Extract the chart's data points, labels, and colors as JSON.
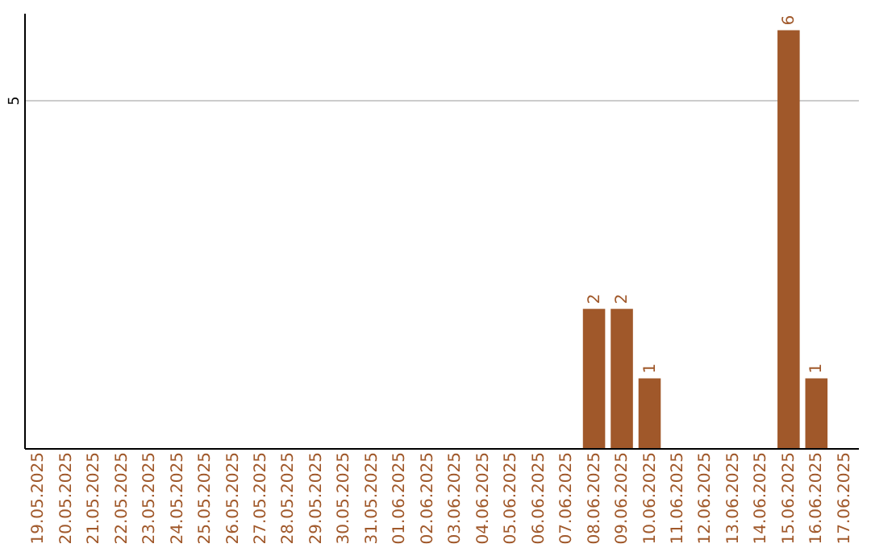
{
  "chart_data": {
    "type": "bar",
    "categories": [
      "19.05.2025",
      "20.05.2025",
      "21.05.2025",
      "22.05.2025",
      "23.05.2025",
      "24.05.2025",
      "25.05.2025",
      "26.05.2025",
      "27.05.2025",
      "28.05.2025",
      "29.05.2025",
      "30.05.2025",
      "31.05.2025",
      "01.06.2025",
      "02.06.2025",
      "03.06.2025",
      "04.06.2025",
      "05.06.2025",
      "06.06.2025",
      "07.06.2025",
      "08.06.2025",
      "09.06.2025",
      "10.06.2025",
      "11.06.2025",
      "12.06.2025",
      "13.06.2025",
      "14.06.2025",
      "15.06.2025",
      "16.06.2025",
      "17.06.2025"
    ],
    "values": [
      null,
      null,
      null,
      null,
      null,
      null,
      null,
      null,
      null,
      null,
      null,
      null,
      null,
      null,
      null,
      null,
      null,
      null,
      null,
      null,
      2,
      2,
      1,
      null,
      null,
      null,
      null,
      6,
      1,
      null
    ],
    "color": "#a0582a",
    "ylim": [
      0,
      6.25
    ],
    "yticks": [
      5
    ],
    "grid": "y",
    "data_labels": true
  }
}
